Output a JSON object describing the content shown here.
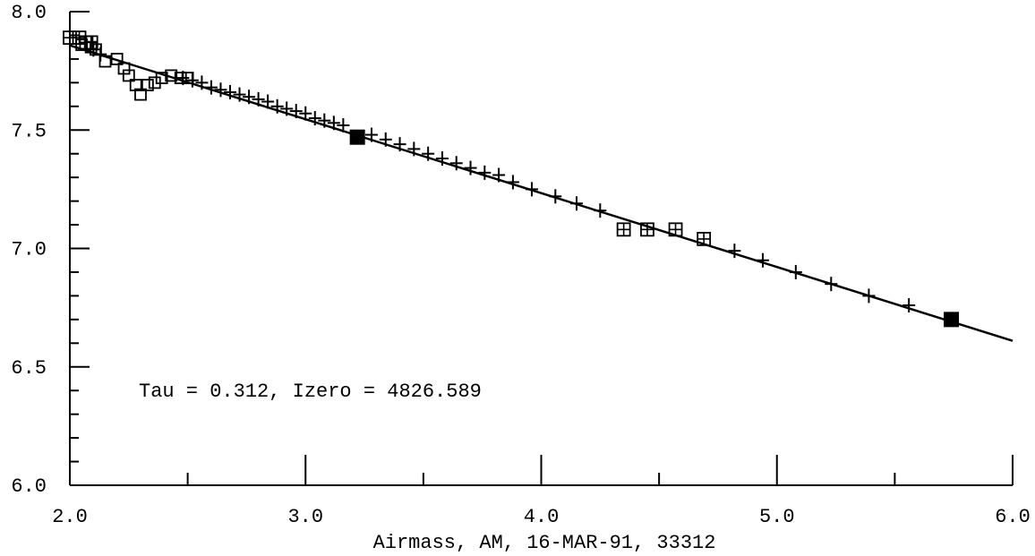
{
  "chart_data": {
    "type": "scatter",
    "title": "",
    "xlabel": "Airmass, AM, 16-MAR-91, 33312",
    "ylabel": "",
    "xlim": [
      2.0,
      6.0
    ],
    "ylim": [
      6.0,
      8.0
    ],
    "x_ticks": [
      "2.0",
      "3.0",
      "4.0",
      "5.0",
      "6.0"
    ],
    "y_ticks": [
      "8.0",
      "7.5",
      "7.0",
      "6.5",
      "6.0"
    ],
    "annotation": "Tau = 0.312, Izero = 4826.589",
    "fit_line": {
      "intercept": 8.4817,
      "slope": -0.312,
      "x_range": [
        2.0,
        6.0
      ]
    },
    "series": [
      {
        "marker": "plus",
        "points": [
          [
            2.1,
            7.84
          ],
          [
            2.13,
            7.82
          ],
          [
            2.48,
            7.72
          ],
          [
            2.52,
            7.71
          ],
          [
            2.56,
            7.7
          ],
          [
            2.6,
            7.68
          ],
          [
            2.64,
            7.67
          ],
          [
            2.68,
            7.66
          ],
          [
            2.72,
            7.65
          ],
          [
            2.76,
            7.64
          ],
          [
            2.8,
            7.63
          ],
          [
            2.84,
            7.62
          ],
          [
            2.88,
            7.6
          ],
          [
            2.92,
            7.59
          ],
          [
            2.96,
            7.58
          ],
          [
            3.0,
            7.57
          ],
          [
            3.04,
            7.55
          ],
          [
            3.08,
            7.54
          ],
          [
            3.12,
            7.53
          ],
          [
            3.16,
            7.52
          ],
          [
            3.28,
            7.48
          ],
          [
            3.34,
            7.46
          ],
          [
            3.4,
            7.44
          ],
          [
            3.46,
            7.42
          ],
          [
            3.52,
            7.4
          ],
          [
            3.58,
            7.38
          ],
          [
            3.64,
            7.36
          ],
          [
            3.7,
            7.34
          ],
          [
            3.76,
            7.32
          ],
          [
            3.82,
            7.31
          ],
          [
            3.88,
            7.28
          ],
          [
            3.96,
            7.25
          ],
          [
            4.06,
            7.22
          ],
          [
            4.15,
            7.19
          ],
          [
            4.25,
            7.16
          ],
          [
            4.82,
            6.99
          ],
          [
            4.94,
            6.95
          ],
          [
            5.08,
            6.9
          ],
          [
            5.23,
            6.85
          ],
          [
            5.39,
            6.8
          ],
          [
            5.56,
            6.76
          ]
        ]
      },
      {
        "marker": "open-square",
        "points": [
          [
            2.05,
            7.86
          ],
          [
            2.09,
            7.85
          ],
          [
            2.11,
            7.84
          ],
          [
            2.15,
            7.79
          ],
          [
            2.2,
            7.8
          ],
          [
            2.23,
            7.76
          ],
          [
            2.25,
            7.73
          ],
          [
            2.28,
            7.69
          ],
          [
            2.3,
            7.65
          ],
          [
            2.33,
            7.69
          ],
          [
            2.36,
            7.7
          ],
          [
            2.39,
            7.72
          ],
          [
            2.43,
            7.73
          ],
          [
            2.47,
            7.72
          ],
          [
            2.5,
            7.72
          ]
        ]
      },
      {
        "marker": "boxed-plus",
        "points": [
          [
            2.0,
            7.89
          ],
          [
            2.04,
            7.89
          ],
          [
            2.07,
            7.87
          ],
          [
            2.09,
            7.87
          ],
          [
            4.35,
            7.08
          ],
          [
            4.45,
            7.08
          ],
          [
            4.57,
            7.08
          ],
          [
            4.69,
            7.04
          ]
        ]
      },
      {
        "marker": "filled-square",
        "points": [
          [
            3.22,
            7.47
          ],
          [
            5.74,
            6.7
          ]
        ]
      }
    ]
  }
}
